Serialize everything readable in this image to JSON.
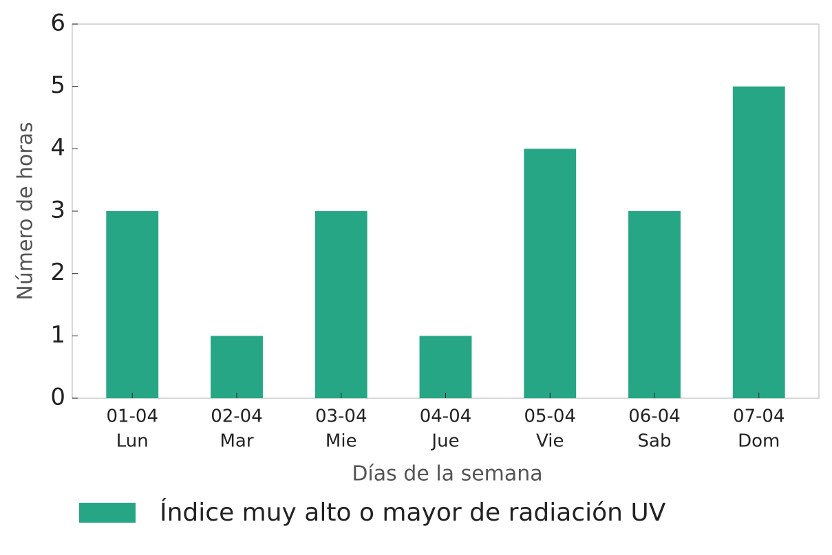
{
  "chart_data": {
    "type": "bar",
    "x_label": "Días de la semana",
    "y_label": "Número de horas",
    "categories": [
      [
        "01-04",
        "Lun"
      ],
      [
        "02-04",
        "Mar"
      ],
      [
        "03-04",
        "Mie"
      ],
      [
        "04-04",
        "Jue"
      ],
      [
        "05-04",
        "Vie"
      ],
      [
        "06-04",
        "Sab"
      ],
      [
        "07-04",
        "Dom"
      ]
    ],
    "series": [
      {
        "name": "Índice muy alto o mayor de radiación UV",
        "color": "#27a685",
        "values": [
          3,
          1,
          3,
          1,
          4,
          3,
          5
        ]
      }
    ],
    "ylim": [
      0,
      6
    ],
    "yticks": [
      0,
      1,
      2,
      3,
      4,
      5,
      6
    ],
    "grid": false,
    "legend": "bottom"
  }
}
